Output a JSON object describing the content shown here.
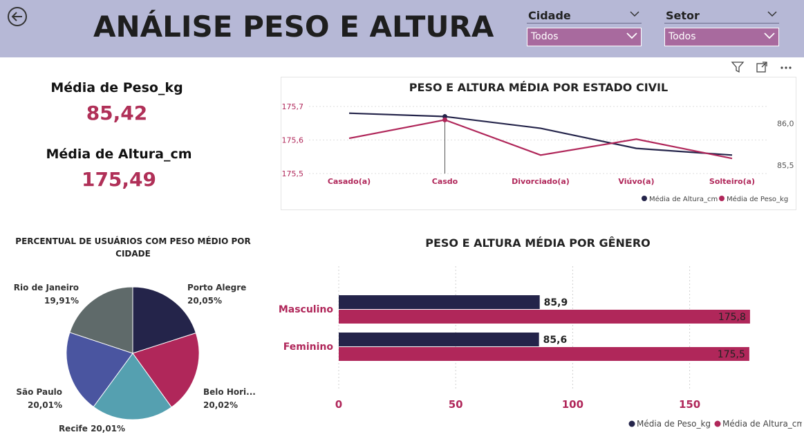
{
  "header": {
    "title": "ANÁLISE PESO E ALTURA",
    "back_icon": "back-arrow-icon",
    "bg_color": "#b6b8d6"
  },
  "filters": {
    "cidade": {
      "label": "Cidade",
      "value": "Todos"
    },
    "setor": {
      "label": "Setor",
      "value": "Todos"
    }
  },
  "kpis": {
    "peso": {
      "label": "Média de Peso_kg",
      "value": "85,42"
    },
    "altura": {
      "label": "Média de Altura_cm",
      "value": "175,49"
    }
  },
  "colors": {
    "navy": "#24244a",
    "crimson": "#b0275a",
    "teal": "#55a0b0",
    "blue": "#4a55a0",
    "gray": "#5f6a6a"
  },
  "chart_data": [
    {
      "type": "line",
      "title": "PESO E ALTURA MÉDIA POR ESTADO CIVIL",
      "categories": [
        "Casado(a)",
        "Casdo",
        "Divorciado(a)",
        "Viúvo(a)",
        "Solteiro(a)"
      ],
      "y_left_ticks": [
        "175,7",
        "175,6",
        "175,5"
      ],
      "y_right_ticks": [
        "86,0",
        "85,5"
      ],
      "ylim_left": [
        175.5,
        175.7
      ],
      "ylim_right": [
        85.4,
        86.2
      ],
      "series": [
        {
          "name": "Média de Altura_cm",
          "axis": "left",
          "color": "#24244a",
          "values": [
            175.68,
            175.67,
            175.635,
            175.575,
            175.555
          ]
        },
        {
          "name": "Média de Peso_kg",
          "axis": "right",
          "color": "#b0275a",
          "values": [
            85.82,
            86.04,
            85.62,
            85.81,
            85.58
          ]
        }
      ],
      "legend_position": "bottom-right"
    },
    {
      "type": "pie",
      "title": "PERCENTUAL DE USUÁRIOS COM PESO MÉDIO POR CIDADE",
      "slices": [
        {
          "label": "Porto Alegre",
          "value": 20.05,
          "pct": "20,05%",
          "color": "#24244a"
        },
        {
          "label": "Belo Hori...",
          "value": 20.02,
          "pct": "20,02%",
          "color": "#b0275a"
        },
        {
          "label": "Recife",
          "value": 20.01,
          "pct": "20,01%",
          "color": "#55a0b0"
        },
        {
          "label": "São Paulo",
          "value": 20.01,
          "pct": "20,01%",
          "color": "#4a55a0"
        },
        {
          "label": "Rio de Janeiro",
          "value": 19.91,
          "pct": "19,91%",
          "color": "#5f6a6a"
        }
      ]
    },
    {
      "type": "bar",
      "orientation": "horizontal",
      "title": "PESO E ALTURA MÉDIA POR GÊNERO",
      "categories": [
        "Masculino",
        "Feminino"
      ],
      "xlim": [
        0,
        175
      ],
      "x_ticks": [
        "0",
        "50",
        "100",
        "150"
      ],
      "series": [
        {
          "name": "Média de Peso_kg",
          "color": "#24244a",
          "values": [
            85.9,
            85.6
          ],
          "labels": [
            "85,9",
            "85,6"
          ]
        },
        {
          "name": "Média de Altura_cm",
          "color": "#b0275a",
          "values": [
            175.8,
            175.5
          ],
          "labels": [
            "175,8",
            "175,5"
          ]
        }
      ],
      "legend_position": "bottom-right"
    }
  ]
}
